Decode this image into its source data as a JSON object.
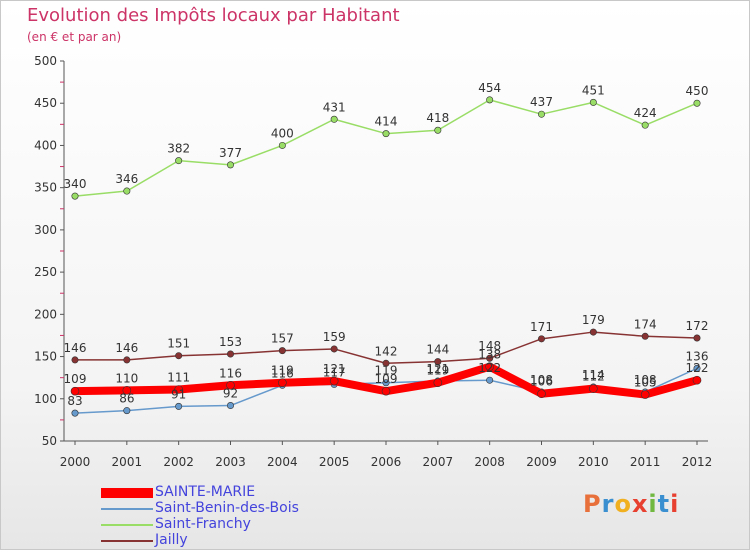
{
  "header": {
    "title": "Evolution des Impôts locaux par Habitant",
    "subtitle": "(en € et par an)"
  },
  "logo": {
    "text": "Proxiti",
    "colors": [
      "#e8703a",
      "#3a8fd0",
      "#f0b020",
      "#e84030",
      "#70b840",
      "#3a8fd0",
      "#e84030"
    ]
  },
  "chart_data": {
    "type": "line",
    "title": "Evolution des Impôts locaux par Habitant",
    "subtitle": "(en € et par an)",
    "xlabel": "",
    "ylabel": "",
    "x": [
      "2000",
      "2001",
      "2002",
      "2003",
      "2004",
      "2005",
      "2006",
      "2007",
      "2008",
      "2009",
      "2010",
      "2011",
      "2012"
    ],
    "ylim": [
      50,
      500
    ],
    "yticks": [
      50,
      100,
      150,
      200,
      250,
      300,
      350,
      400,
      450,
      500
    ],
    "grid": false,
    "legend_position": "bottom-left",
    "series": [
      {
        "name": "SAINTE-MARIE",
        "color": "#ff0000",
        "values": [
          109,
          110,
          111,
          116,
          119,
          121,
          109,
          119,
          138,
          106,
          112,
          105,
          122
        ]
      },
      {
        "name": "Saint-Benin-des-Bois",
        "color": "#6699cc",
        "values": [
          83,
          86,
          91,
          92,
          116,
          117,
          119,
          121,
          122,
          108,
          114,
          108,
          136
        ]
      },
      {
        "name": "Saint-Franchy",
        "color": "#99dd66",
        "values": [
          340,
          346,
          382,
          377,
          400,
          431,
          414,
          418,
          454,
          437,
          451,
          424,
          450
        ]
      },
      {
        "name": "Jailly",
        "color": "#883333",
        "values": [
          146,
          146,
          151,
          153,
          157,
          159,
          142,
          144,
          148,
          171,
          179,
          174,
          172
        ]
      }
    ]
  }
}
